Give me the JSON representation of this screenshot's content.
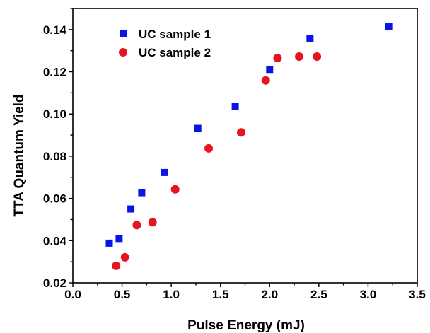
{
  "chart_data": {
    "type": "scatter",
    "title": "",
    "xlabel": "Pulse Energy (mJ)",
    "ylabel": "TTA Quantum Yield",
    "xlim": [
      0.0,
      3.5
    ],
    "ylim": [
      0.02,
      0.15
    ],
    "xticks": [
      "0.0",
      "0.5",
      "1.0",
      "1.5",
      "2.0",
      "2.5",
      "3.0",
      "3.5"
    ],
    "yticks": [
      "0.02",
      "0.04",
      "0.06",
      "0.08",
      "0.10",
      "0.12",
      "0.14"
    ],
    "grid": false,
    "legend_position": "top-left",
    "series": [
      {
        "name": "UC sample 1",
        "marker": "square",
        "color": "#0a14e6",
        "x": [
          0.37,
          0.47,
          0.59,
          0.7,
          0.93,
          1.27,
          1.65,
          2.0,
          2.41,
          3.21
        ],
        "y": [
          0.0388,
          0.041,
          0.055,
          0.0627,
          0.0723,
          0.0932,
          0.1036,
          0.1211,
          0.1357,
          0.1414
        ]
      },
      {
        "name": "UC sample 2",
        "marker": "circle",
        "color": "#e6141e",
        "x": [
          0.44,
          0.53,
          0.65,
          0.81,
          1.04,
          1.38,
          1.71,
          1.96,
          2.08,
          2.3,
          2.48
        ],
        "y": [
          0.0281,
          0.0321,
          0.0474,
          0.0487,
          0.0643,
          0.0837,
          0.0913,
          0.1159,
          0.1265,
          0.1272,
          0.1272
        ]
      }
    ]
  }
}
